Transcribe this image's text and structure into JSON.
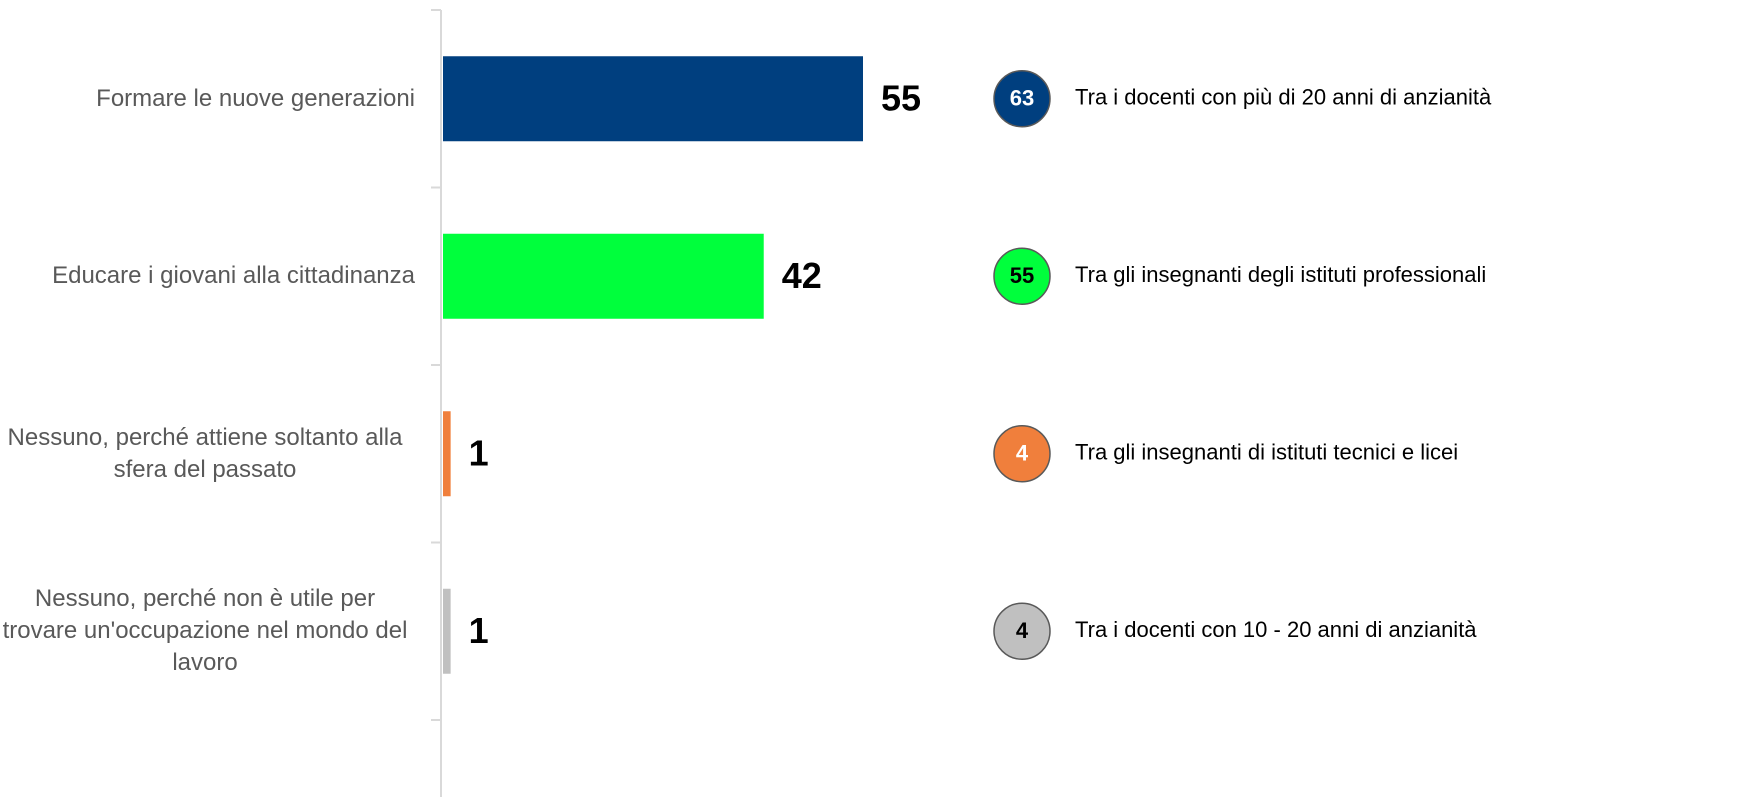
{
  "chart_data": {
    "type": "bar",
    "orientation": "horizontal",
    "categories": [
      "Formare le nuove generazioni",
      "Educare i giovani alla cittadinanza",
      "Nessuno, perché attiene soltanto alla sfera del passato",
      "Nessuno, perché non è utile per trovare un'occupazione nel mondo del lavoro"
    ],
    "values": [
      55,
      42,
      1,
      1
    ],
    "colors": [
      "#003f7f",
      "#00ff3c",
      "#f07f3c",
      "#c0c0c0"
    ],
    "annotations": [
      {
        "value": 63,
        "text": "Tra i docenti con più di 20 anni di anzianità",
        "color": "#003f7f",
        "text_color": "#ffffff"
      },
      {
        "value": 55,
        "text": "Tra gli insegnanti degli istituti professionali",
        "color": "#00ff3c",
        "text_color": "#000000"
      },
      {
        "value": 4,
        "text": "Tra gli insegnanti di istituti tecnici e licei",
        "color": "#f07f3c",
        "text_color": "#ffffff"
      },
      {
        "value": 4,
        "text": "Tra i docenti con 10 - 20 anni di anzianità",
        "color": "#c0c0c0",
        "text_color": "#000000"
      }
    ]
  }
}
